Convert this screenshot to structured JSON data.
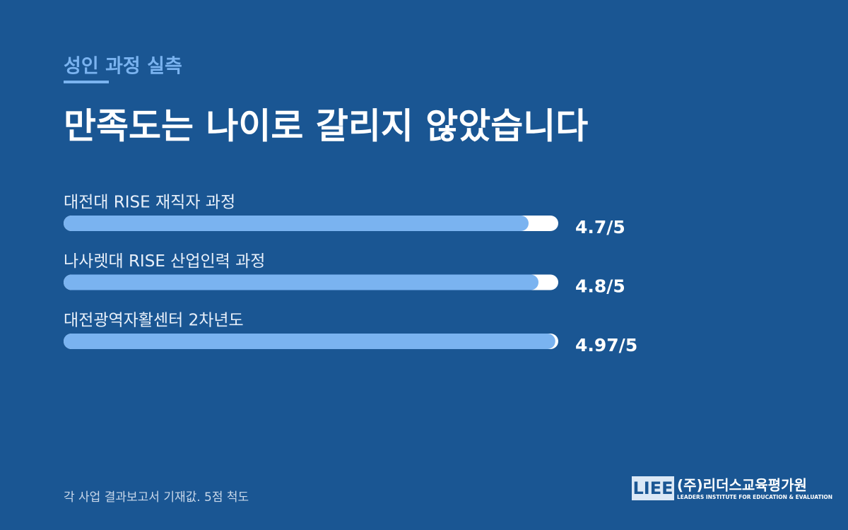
{
  "kicker": "성인 과정 실측",
  "chart_data": {
    "type": "bar",
    "orientation": "horizontal",
    "title": "만족도는 나이로 갈리지 않았습니다",
    "categories": [
      "대전대 RISE 재직자 과정",
      "나사렛대 RISE 산업인력 과정",
      "대전광역자활센터 2차년도"
    ],
    "values": [
      4.7,
      4.8,
      4.97
    ],
    "value_labels": [
      "4.7/5",
      "4.8/5",
      "4.97/5"
    ],
    "xlim": [
      0,
      5
    ],
    "color": "#7ab3f0",
    "track_color": "#ffffff"
  },
  "footnote": "각 사업 결과보고서 기재값. 5점 척도",
  "logo": {
    "mark": "LIEE",
    "name": "(주)리더스교육평가원",
    "tagline": "LEADERS INSTITUTE FOR EDUCATION & EVALUATION"
  }
}
